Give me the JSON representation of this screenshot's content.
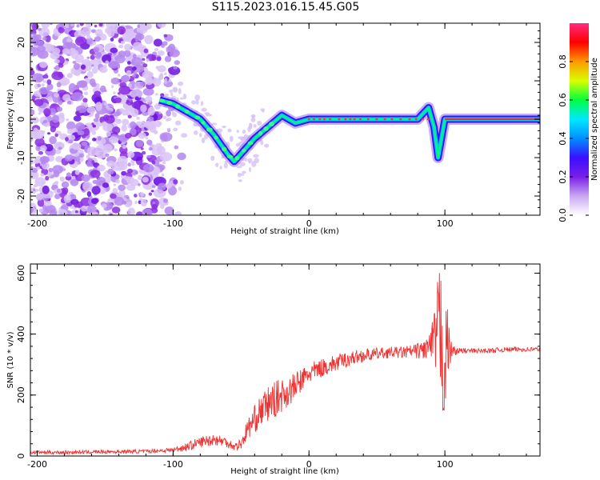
{
  "title": "S115.2023.016.15.45.G05",
  "chart_data": [
    {
      "type": "heatmap",
      "xlabel": "Height of straight line (km)",
      "ylabel": "Frequency (Hz)",
      "xlim": [
        -205,
        170
      ],
      "ylim": [
        -25,
        25
      ],
      "xticks": [
        -200,
        -100,
        0,
        100
      ],
      "yticks": [
        -20,
        -10,
        0,
        10,
        20
      ],
      "colorbar": {
        "label": "Normalized spectral amplitude",
        "range": [
          0.0,
          1.0
        ],
        "ticks": [
          "0.0",
          "0.2",
          "0.4",
          "0.6",
          "0.8"
        ],
        "colors": [
          "#ffffff",
          "#c9a7f2",
          "#7a1ee8",
          "#3a10ff",
          "#0090ff",
          "#00e8ff",
          "#00ff40",
          "#d8ff00",
          "#ff9900",
          "#ff0000",
          "#ff2a80"
        ]
      },
      "ridge_frequency_vs_height": {
        "x": [
          -110,
          -100,
          -90,
          -80,
          -70,
          -60,
          -55,
          -50,
          -45,
          -40,
          -30,
          -20,
          -10,
          0,
          20,
          40,
          60,
          80,
          88,
          92,
          95,
          100,
          120,
          140,
          160,
          170
        ],
        "y": [
          5,
          4,
          2,
          0,
          -4,
          -9,
          -11,
          -9,
          -7,
          -5,
          -2,
          1,
          -1,
          0,
          0,
          0,
          0,
          0,
          3,
          -2,
          -10,
          0,
          0,
          0,
          0,
          0
        ]
      },
      "noise_region_x": [
        -205,
        -100
      ]
    },
    {
      "type": "line",
      "xlabel": "Height of straight line (km)",
      "ylabel": "SNR (10 * v/v)",
      "xlim": [
        -205,
        170
      ],
      "ylim": [
        0,
        630
      ],
      "xticks": [
        -200,
        -100,
        0,
        100
      ],
      "yticks": [
        0,
        200,
        400,
        600
      ],
      "series": [
        {
          "color": "#ee3333",
          "x": [
            -205,
            -180,
            -150,
            -120,
            -100,
            -90,
            -80,
            -70,
            -60,
            -55,
            -50,
            -45,
            -40,
            -35,
            -30,
            -25,
            -20,
            -15,
            -10,
            -5,
            0,
            10,
            20,
            30,
            40,
            50,
            60,
            70,
            80,
            85,
            90,
            93,
            96,
            98,
            100,
            102,
            105,
            110,
            120,
            130,
            140,
            150,
            160,
            170
          ],
          "y": [
            12,
            12,
            14,
            15,
            20,
            30,
            45,
            55,
            45,
            30,
            40,
            90,
            120,
            150,
            170,
            185,
            200,
            210,
            230,
            250,
            270,
            290,
            305,
            320,
            330,
            335,
            340,
            340,
            345,
            350,
            360,
            380,
            420,
            380,
            300,
            360,
            345,
            345,
            345,
            345,
            348,
            350,
            350,
            350
          ],
          "amplitude": [
            6,
            6,
            6,
            6,
            8,
            14,
            18,
            20,
            18,
            12,
            20,
            35,
            45,
            50,
            60,
            60,
            55,
            50,
            45,
            40,
            35,
            30,
            28,
            25,
            22,
            20,
            18,
            20,
            25,
            35,
            60,
            120,
            220,
            260,
            200,
            130,
            20,
            10,
            8,
            8,
            8,
            8,
            8,
            8
          ]
        }
      ]
    }
  ]
}
